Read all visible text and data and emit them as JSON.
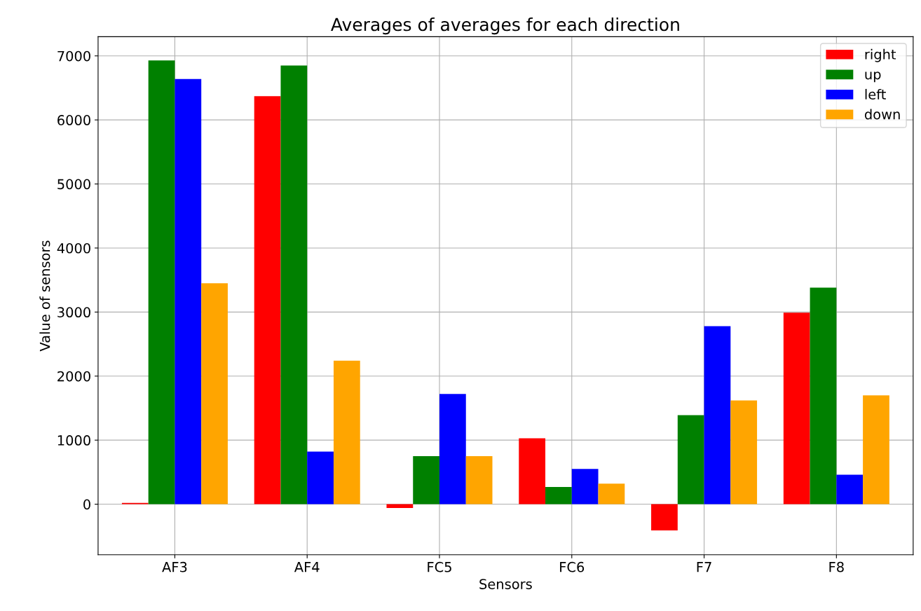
{
  "chart_data": {
    "type": "bar",
    "title": "Averages of averages for each direction",
    "xlabel": "Sensors",
    "ylabel": "Value of sensors",
    "categories": [
      "AF3",
      "AF4",
      "FC5",
      "FC6",
      "F7",
      "F8"
    ],
    "series": [
      {
        "name": "right",
        "color": "#ff0000",
        "values": [
          20,
          6370,
          -60,
          1030,
          -410,
          2990
        ]
      },
      {
        "name": "up",
        "color": "#008000",
        "values": [
          6930,
          6850,
          750,
          270,
          1390,
          3380
        ]
      },
      {
        "name": "left",
        "color": "#0000ff",
        "values": [
          6640,
          820,
          1720,
          550,
          2780,
          460
        ]
      },
      {
        "name": "down",
        "color": "#ffa500",
        "values": [
          3450,
          2240,
          750,
          320,
          1620,
          1700
        ]
      }
    ],
    "ylim": [
      -790,
      7300
    ],
    "yticks": [
      0,
      1000,
      2000,
      3000,
      4000,
      5000,
      6000,
      7000
    ],
    "grid": true,
    "legend": "top right"
  }
}
